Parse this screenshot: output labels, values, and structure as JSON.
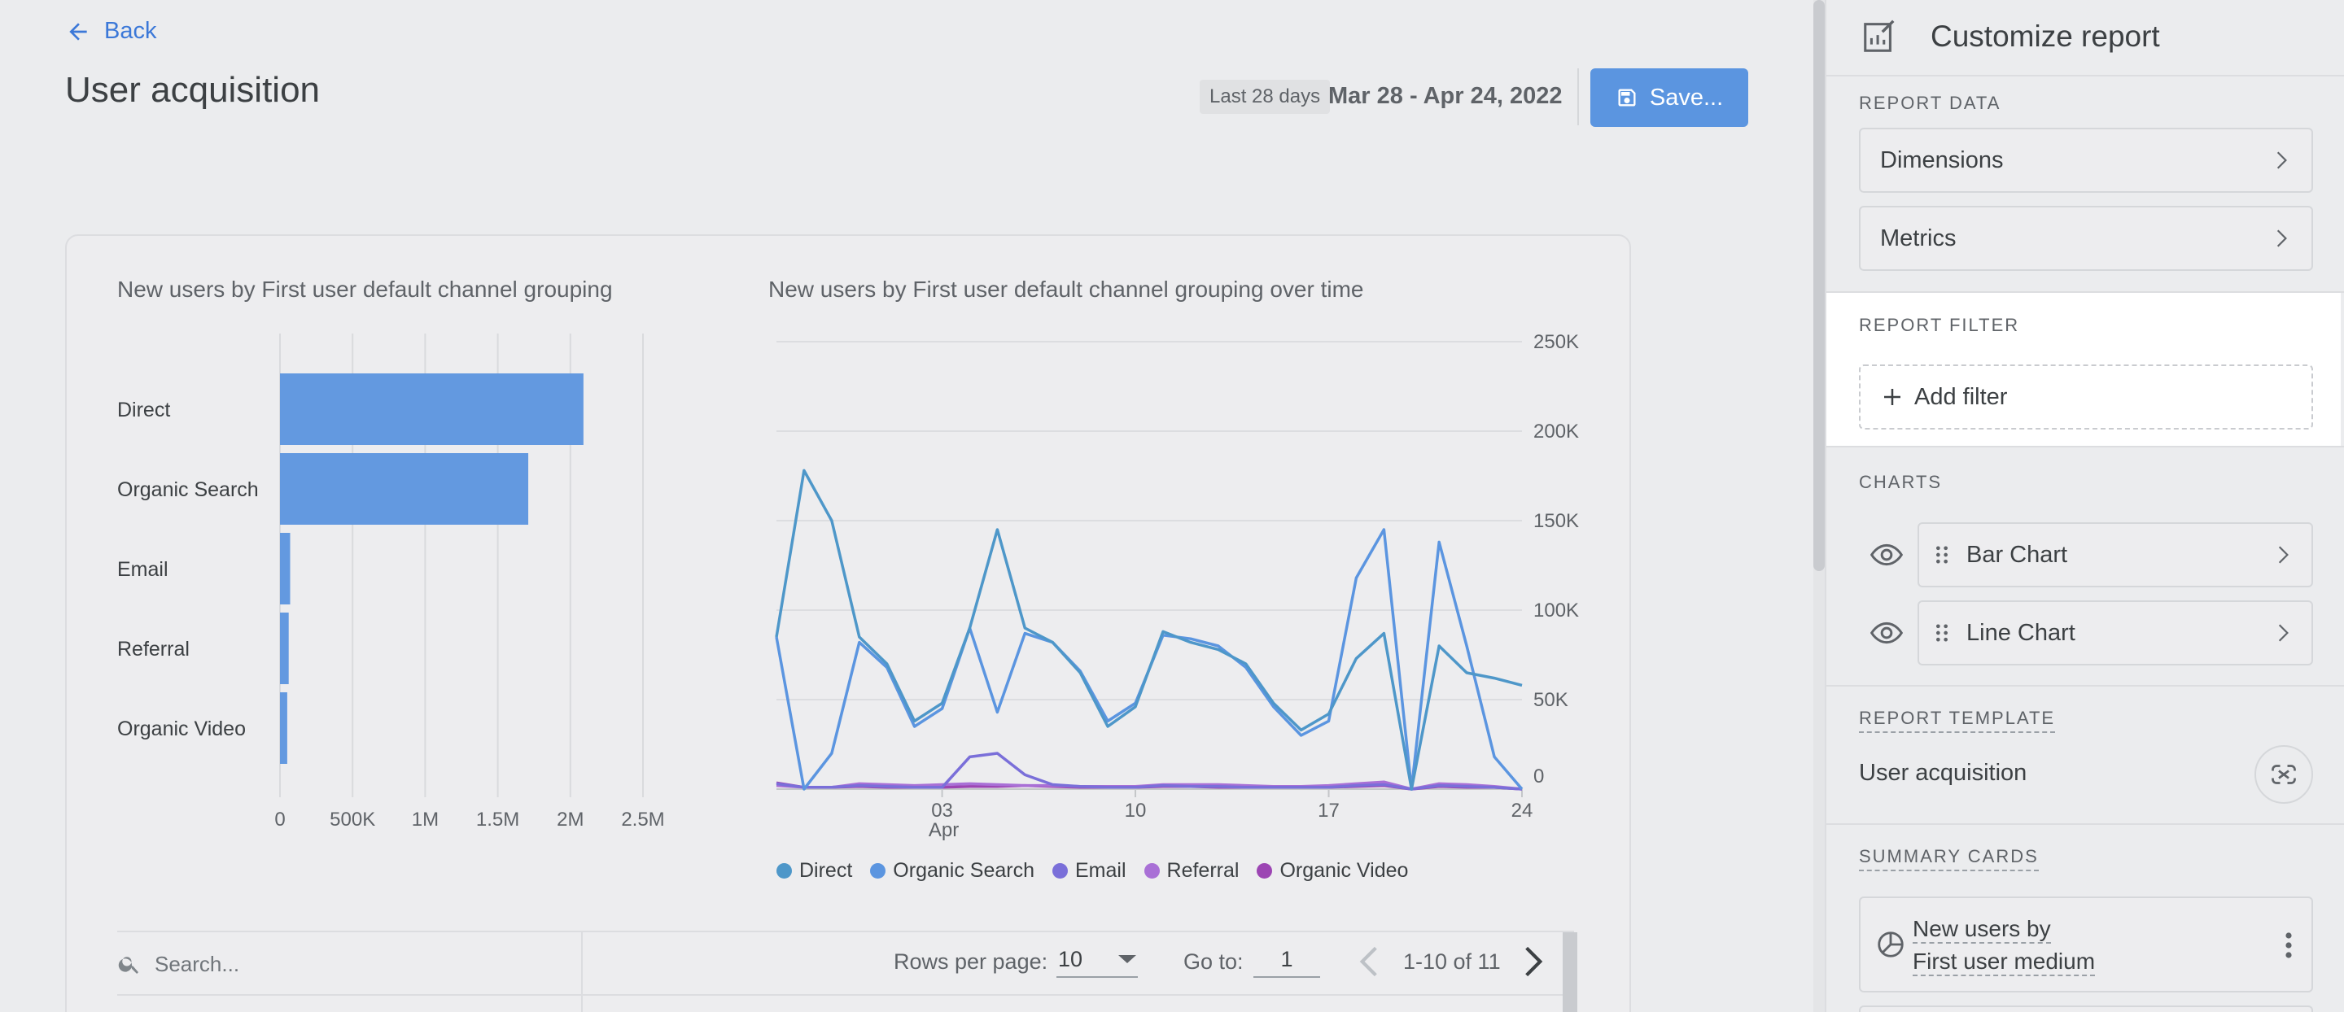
{
  "header": {
    "back_label": "Back",
    "page_title": "User acquisition",
    "date_chip": "Last 28 days",
    "date_range": "Mar 28 - Apr 24, 2022",
    "save_label": "Save..."
  },
  "bar_chart": {
    "title": "New users by First user default channel grouping"
  },
  "line_chart": {
    "title": "New users by First user default channel grouping over time"
  },
  "chart_data": [
    {
      "type": "bar",
      "orientation": "horizontal",
      "title": "New users by First user default channel grouping",
      "categories": [
        "Direct",
        "Organic Search",
        "Email",
        "Referral",
        "Organic Video"
      ],
      "values": [
        2090000,
        1710000,
        70000,
        60000,
        50000
      ],
      "xlim": [
        0,
        2500000
      ],
      "x_ticks": [
        "0",
        "500K",
        "1M",
        "1.5M",
        "2M",
        "2.5M"
      ],
      "x_tick_values": [
        0,
        500000,
        1000000,
        1500000,
        2000000,
        2500000
      ],
      "grid": true,
      "color": "#6399e0"
    },
    {
      "type": "line",
      "title": "New users by First user default channel grouping over time",
      "x": [
        "Mar 28",
        "Mar 29",
        "Mar 30",
        "Mar 31",
        "Apr 1",
        "Apr 2",
        "Apr 3",
        "Apr 4",
        "Apr 5",
        "Apr 6",
        "Apr 7",
        "Apr 8",
        "Apr 9",
        "Apr 10",
        "Apr 11",
        "Apr 12",
        "Apr 13",
        "Apr 14",
        "Apr 15",
        "Apr 16",
        "Apr 17",
        "Apr 18",
        "Apr 19",
        "Apr 20",
        "Apr 21",
        "Apr 22",
        "Apr 23",
        "Apr 24"
      ],
      "x_ticks": [
        {
          "label": "03",
          "sub": "Apr",
          "index": 6
        },
        {
          "label": "10",
          "sub": "",
          "index": 13
        },
        {
          "label": "17",
          "sub": "",
          "index": 20
        },
        {
          "label": "24",
          "sub": "",
          "index": 27
        }
      ],
      "y_ticks": [
        "0",
        "50K",
        "100K",
        "150K",
        "200K",
        "250K"
      ],
      "y_tick_values": [
        0,
        50000,
        100000,
        150000,
        200000,
        250000
      ],
      "ylim": [
        0,
        250000
      ],
      "y_axis_position": "right",
      "grid": true,
      "legend_position": "bottom",
      "series": [
        {
          "name": "Direct",
          "color": "#4e97c9",
          "values": [
            85000,
            178000,
            150000,
            85000,
            70000,
            38000,
            48000,
            90000,
            145000,
            90000,
            82000,
            65000,
            35000,
            46000,
            88000,
            82000,
            78000,
            70000,
            48000,
            33000,
            42000,
            73000,
            87000,
            0,
            80000,
            65000,
            62000,
            58000
          ]
        },
        {
          "name": "Organic Search",
          "color": "#5b95e0",
          "values": [
            85000,
            0,
            20000,
            82000,
            68000,
            35000,
            45000,
            90000,
            43000,
            87000,
            82000,
            66000,
            38000,
            48000,
            86000,
            84000,
            80000,
            68000,
            46000,
            30000,
            38000,
            118000,
            145000,
            0,
            138000,
            80000,
            18000,
            0
          ]
        },
        {
          "name": "Email",
          "color": "#7a6fd9",
          "values": [
            3000,
            1000,
            1000,
            2000,
            1500,
            1000,
            1000,
            18000,
            20000,
            8000,
            2500,
            1500,
            1000,
            1000,
            2000,
            1500,
            1500,
            1000,
            1000,
            1000,
            1000,
            2000,
            2500,
            0,
            2000,
            1500,
            1000,
            0
          ]
        },
        {
          "name": "Referral",
          "color": "#a970d6",
          "values": [
            2000,
            1000,
            1000,
            3000,
            2500,
            2000,
            2500,
            3000,
            2500,
            2000,
            2000,
            1500,
            1500,
            1500,
            2500,
            2500,
            2500,
            2000,
            1500,
            1500,
            2000,
            3000,
            4000,
            0,
            3000,
            2500,
            1500,
            0
          ]
        },
        {
          "name": "Organic Video",
          "color": "#9c45b3",
          "values": [
            3500,
            1000,
            1000,
            1500,
            1000,
            1000,
            1000,
            1500,
            1500,
            2000,
            1500,
            1000,
            1000,
            1000,
            1500,
            1500,
            1000,
            1000,
            1000,
            1000,
            1000,
            1500,
            2000,
            0,
            1500,
            1000,
            1000,
            0
          ]
        }
      ]
    }
  ],
  "table": {
    "search_placeholder": "Search...",
    "rows_label": "Rows per page:",
    "rows_value": "10",
    "goto_label": "Go to:",
    "goto_value": "1",
    "page_info": "1-10 of 11"
  },
  "panel": {
    "title": "Customize report",
    "report_data_label": "REPORT DATA",
    "dimensions_label": "Dimensions",
    "metrics_label": "Metrics",
    "report_filter_label": "REPORT FILTER",
    "add_filter_label": "Add filter",
    "charts_label": "CHARTS",
    "bar_chart_label": "Bar Chart",
    "line_chart_label": "Line Chart",
    "report_template_label": "REPORT TEMPLATE",
    "template_name": "User acquisition",
    "summary_cards_label": "SUMMARY CARDS",
    "summary_card_line1": "New users by",
    "summary_card_line2": "First user medium"
  },
  "icons": {
    "back": "arrow-left-icon",
    "save": "floppy-disk-icon",
    "panel": "edit-report-icon",
    "search": "search-icon",
    "eye": "eye-icon",
    "drag": "drag-handle-icon",
    "template": "unlink-icon",
    "summary_card": "pie-chart-icon",
    "menu": "more-vertical-icon"
  }
}
